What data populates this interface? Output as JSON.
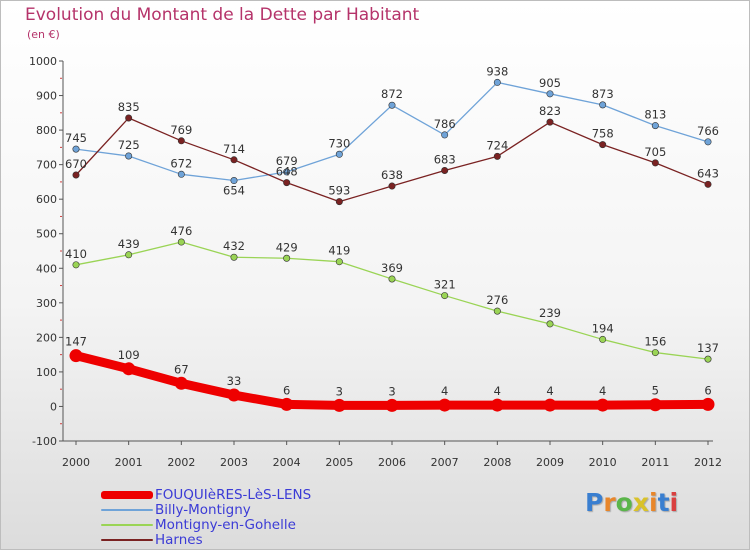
{
  "title": "Evolution du Montant de la Dette par Habitant",
  "subtitle": "(en €)",
  "logo": {
    "text": "Proxiti",
    "letter_colors": [
      "#3a7fd0",
      "#e8862a",
      "#5ab54a",
      "#d9c22a",
      "#e8862a",
      "#3a7fd0",
      "#d94040"
    ]
  },
  "chart_data": {
    "type": "line",
    "x": [
      "2000",
      "2001",
      "2002",
      "2003",
      "2004",
      "2005",
      "2006",
      "2007",
      "2008",
      "2009",
      "2010",
      "2011",
      "2012"
    ],
    "ylim": [
      -100,
      1000
    ],
    "yticks": [
      -100,
      0,
      100,
      200,
      300,
      400,
      500,
      600,
      700,
      800,
      900,
      1000
    ],
    "grid": false,
    "legend_position": "bottom-left",
    "series": [
      {
        "name": "FOUQUIèRES-LèS-LENS",
        "color": "#ee0000",
        "width": 9,
        "marker_radius": 6.5,
        "values": [
          147,
          109,
          67,
          33,
          6,
          3,
          3,
          4,
          4,
          4,
          4,
          5,
          6
        ],
        "label_offset": "above"
      },
      {
        "name": "Billy-Montigny",
        "color": "#6fa3d8",
        "width": 1.3,
        "marker_radius": 3.2,
        "values": [
          745,
          725,
          672,
          654,
          679,
          730,
          872,
          786,
          938,
          905,
          873,
          813,
          766
        ],
        "label_offset": [
          "above",
          "above",
          "above",
          "below",
          "above",
          "above",
          "above",
          "above",
          "above",
          "above",
          "above",
          "above",
          "above"
        ]
      },
      {
        "name": "Montigny-en-Gohelle",
        "color": "#9ad455",
        "width": 1.3,
        "marker_radius": 3.2,
        "values": [
          410,
          439,
          476,
          432,
          429,
          419,
          369,
          321,
          276,
          239,
          194,
          156,
          137
        ],
        "label_offset": "above"
      },
      {
        "name": "Harnes",
        "color": "#7a2222",
        "width": 1.3,
        "marker_radius": 3.2,
        "values": [
          670,
          835,
          769,
          714,
          648,
          593,
          638,
          683,
          724,
          823,
          758,
          705,
          643
        ],
        "label_offset": [
          "above",
          "above",
          "above",
          "above",
          "above",
          "above",
          "above",
          "above",
          "above",
          "above",
          "above",
          "above",
          "above"
        ]
      }
    ]
  }
}
